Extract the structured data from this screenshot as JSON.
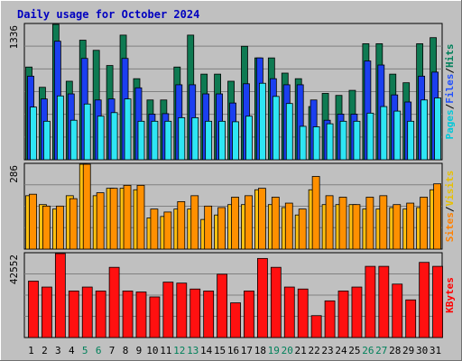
{
  "chart_data": {
    "type": "bar",
    "title": "Daily usage for October 2024",
    "days": [
      "1",
      "2",
      "3",
      "4",
      "5",
      "6",
      "7",
      "8",
      "9",
      "10",
      "11",
      "12",
      "13",
      "14",
      "15",
      "16",
      "17",
      "18",
      "19",
      "20",
      "21",
      "22",
      "23",
      "24",
      "25",
      "26",
      "27",
      "28",
      "29",
      "30",
      "31"
    ],
    "weekend_days": [
      "5",
      "6",
      "12",
      "13",
      "19",
      "20",
      "26",
      "27"
    ],
    "panels": [
      {
        "max_label": "1336",
        "ymax": 1336,
        "legend": [
          "Pages",
          "Files",
          "Hits"
        ],
        "series": [
          {
            "name": "Hits",
            "color": "#0e7a52",
            "values": [
              915,
              715,
              1336,
              775,
              1180,
              1080,
              930,
              1230,
              800,
              590,
              590,
              915,
              1230,
              845,
              845,
              775,
              1120,
              1005,
              1005,
              855,
              800,
              525,
              655,
              635,
              685,
              1145,
              1145,
              845,
              760,
              1145,
              1205
            ]
          },
          {
            "name": "Files",
            "color": "#1b3ff0",
            "values": [
              825,
              600,
              1170,
              650,
              1000,
              590,
              600,
              1000,
              710,
              450,
              455,
              740,
              740,
              650,
              650,
              560,
              750,
              1005,
              800,
              740,
              740,
              590,
              390,
              450,
              450,
              975,
              935,
              640,
              570,
              825,
              865
            ]
          },
          {
            "name": "Pages",
            "color": "#2ee6f4",
            "values": [
              520,
              380,
              630,
              390,
              550,
              430,
              465,
              600,
              380,
              380,
              380,
              415,
              415,
              380,
              380,
              375,
              430,
              755,
              625,
              555,
              330,
              325,
              355,
              380,
              380,
              460,
              525,
              480,
              380,
              590,
              610
            ]
          }
        ]
      },
      {
        "max_label": "286",
        "ymax": 286,
        "legend": [
          "Sites",
          "Visits"
        ],
        "series": [
          {
            "name": "Visits",
            "color": "#ffc010",
            "values": [
              180,
              150,
              135,
              180,
              286,
              180,
              205,
              205,
              200,
              105,
              110,
              135,
              135,
              100,
              115,
              150,
              150,
              200,
              150,
              140,
              115,
              200,
              150,
              150,
              150,
              135,
              135,
              140,
              135,
              140,
              200
            ]
          },
          {
            "name": "Sites",
            "color": "#ff9000",
            "values": [
              185,
              145,
              145,
              170,
              286,
              190,
              205,
              215,
              215,
              135,
              125,
              160,
              180,
              145,
              140,
              175,
              180,
              205,
              175,
              155,
              135,
              245,
              180,
              175,
              150,
              175,
              180,
              150,
              155,
              175,
              220
            ]
          }
        ]
      },
      {
        "max_label": "42552",
        "ymax": 42552,
        "legend": [
          "KBytes"
        ],
        "series": [
          {
            "name": "KBytes",
            "color": "#ff1010",
            "values": [
              28600,
              25600,
              42552,
              23600,
              25600,
              23600,
              35600,
              23600,
              23100,
              20600,
              28100,
              27600,
              24600,
              23600,
              32100,
              17600,
              23600,
              40100,
              35600,
              25600,
              24600,
              11100,
              18600,
              23600,
              25600,
              36100,
              36100,
              27100,
              19100,
              38100,
              36100
            ]
          }
        ]
      }
    ]
  }
}
